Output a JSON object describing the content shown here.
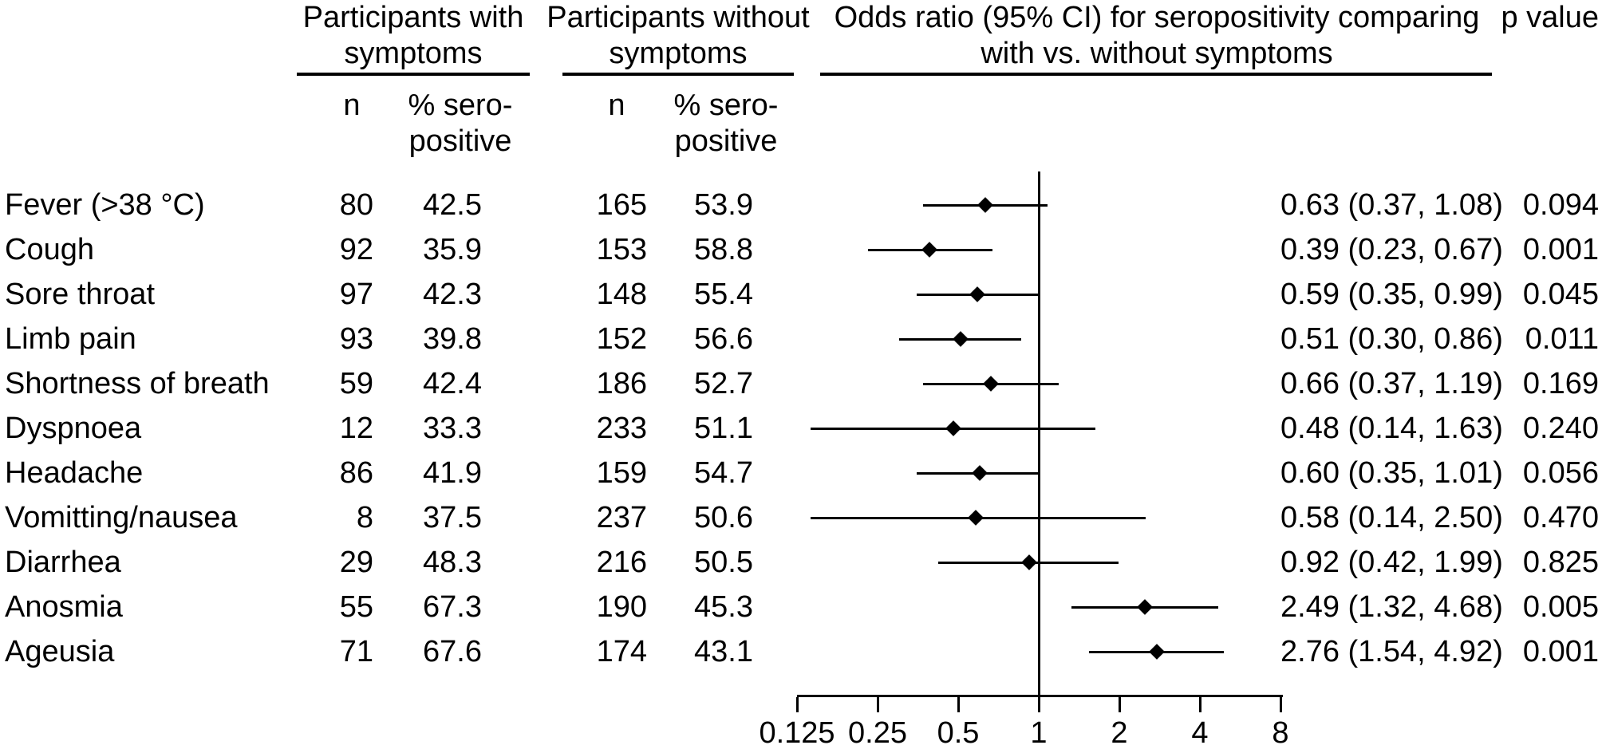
{
  "chart_data": {
    "type": "forest",
    "headers": {
      "with_group": [
        "Participants with",
        "symptoms"
      ],
      "without_group": [
        "Participants without",
        "symptoms"
      ],
      "or_group": [
        "Odds ratio (95% CI) for seropositivity comparing",
        "with vs. without symptoms"
      ],
      "p": "p value",
      "n": "n",
      "pct": [
        "% sero-",
        "positive"
      ]
    },
    "x_axis": {
      "scale": "log2",
      "ticks": [
        "0.125",
        "0.25",
        "0.5",
        "1",
        "2",
        "4",
        "8"
      ],
      "range": [
        0.125,
        8
      ],
      "reference_line": 1
    },
    "legend_position": "none",
    "grid": false,
    "colors": {
      "foreground": "#000000",
      "background": "#ffffff"
    },
    "rows": [
      {
        "label": "Fever (>38 °C)",
        "n_with": "80",
        "pct_with": "42.5",
        "n_without": "165",
        "pct_without": "53.9",
        "or": 0.63,
        "ci_low": 0.37,
        "ci_high": 1.08,
        "or_text": "0.63 (0.37, 1.08)",
        "p": "0.094"
      },
      {
        "label": "Cough",
        "n_with": "92",
        "pct_with": "35.9",
        "n_without": "153",
        "pct_without": "58.8",
        "or": 0.39,
        "ci_low": 0.23,
        "ci_high": 0.67,
        "or_text": "0.39 (0.23, 0.67)",
        "p": "0.001"
      },
      {
        "label": "Sore throat",
        "n_with": "97",
        "pct_with": "42.3",
        "n_without": "148",
        "pct_without": "55.4",
        "or": 0.59,
        "ci_low": 0.35,
        "ci_high": 0.99,
        "or_text": "0.59 (0.35, 0.99)",
        "p": "0.045"
      },
      {
        "label": "Limb pain",
        "n_with": "93",
        "pct_with": "39.8",
        "n_without": "152",
        "pct_without": "56.6",
        "or": 0.51,
        "ci_low": 0.3,
        "ci_high": 0.86,
        "or_text": "0.51 (0.30, 0.86)",
        "p": "0.011"
      },
      {
        "label": "Shortness of breath",
        "n_with": "59",
        "pct_with": "42.4",
        "n_without": "186",
        "pct_without": "52.7",
        "or": 0.66,
        "ci_low": 0.37,
        "ci_high": 1.19,
        "or_text": "0.66 (0.37, 1.19)",
        "p": "0.169"
      },
      {
        "label": "Dyspnoea",
        "n_with": "12",
        "pct_with": "33.3",
        "n_without": "233",
        "pct_without": "51.1",
        "or": 0.48,
        "ci_low": 0.14,
        "ci_high": 1.63,
        "or_text": "0.48 (0.14, 1.63)",
        "p": "0.240"
      },
      {
        "label": "Headache",
        "n_with": "86",
        "pct_with": "41.9",
        "n_without": "159",
        "pct_without": "54.7",
        "or": 0.6,
        "ci_low": 0.35,
        "ci_high": 1.01,
        "or_text": "0.60 (0.35, 1.01)",
        "p": "0.056"
      },
      {
        "label": "Vomitting/nausea",
        "n_with": "8",
        "pct_with": "37.5",
        "n_without": "237",
        "pct_without": "50.6",
        "or": 0.58,
        "ci_low": 0.14,
        "ci_high": 2.5,
        "or_text": "0.58 (0.14, 2.50)",
        "p": "0.470"
      },
      {
        "label": "Diarrhea",
        "n_with": "29",
        "pct_with": "48.3",
        "n_without": "216",
        "pct_without": "50.5",
        "or": 0.92,
        "ci_low": 0.42,
        "ci_high": 1.99,
        "or_text": "0.92 (0.42, 1.99)",
        "p": "0.825"
      },
      {
        "label": "Anosmia",
        "n_with": "55",
        "pct_with": "67.3",
        "n_without": "190",
        "pct_without": "45.3",
        "or": 2.49,
        "ci_low": 1.32,
        "ci_high": 4.68,
        "or_text": "2.49 (1.32, 4.68)",
        "p": "0.005"
      },
      {
        "label": "Ageusia",
        "n_with": "71",
        "pct_with": "67.6",
        "n_without": "174",
        "pct_without": "43.1",
        "or": 2.76,
        "ci_low": 1.54,
        "ci_high": 4.92,
        "or_text": "2.76 (1.54, 4.92)",
        "p": "0.001"
      }
    ]
  }
}
